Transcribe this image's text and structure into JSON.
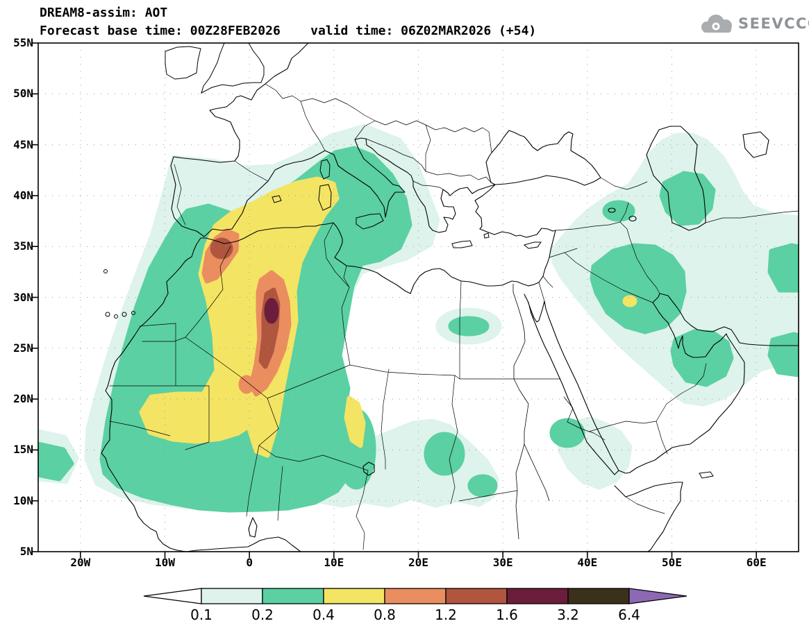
{
  "header": {
    "line1": "DREAM8-assim: AOT",
    "line2": "Forecast base time: 00Z28FEB2026    valid time: 06Z02MAR2026 (+54)"
  },
  "logo": {
    "text": "SEEVCCC"
  },
  "axes": {
    "x_ticks": [
      {
        "label": "20W",
        "lon": -20
      },
      {
        "label": "10W",
        "lon": -10
      },
      {
        "label": "0",
        "lon": 0
      },
      {
        "label": "10E",
        "lon": 10
      },
      {
        "label": "20E",
        "lon": 20
      },
      {
        "label": "30E",
        "lon": 30
      },
      {
        "label": "40E",
        "lon": 40
      },
      {
        "label": "50E",
        "lon": 50
      },
      {
        "label": "60E",
        "lon": 60
      }
    ],
    "y_ticks": [
      {
        "label": "55N",
        "lat": 55
      },
      {
        "label": "50N",
        "lat": 50
      },
      {
        "label": "45N",
        "lat": 45
      },
      {
        "label": "40N",
        "lat": 40
      },
      {
        "label": "35N",
        "lat": 35
      },
      {
        "label": "30N",
        "lat": 30
      },
      {
        "label": "25N",
        "lat": 25
      },
      {
        "label": "20N",
        "lat": 20
      },
      {
        "label": "15N",
        "lat": 15
      },
      {
        "label": "10N",
        "lat": 10
      },
      {
        "label": "5N",
        "lat": 5
      }
    ]
  },
  "palette": {
    "0_1": "#ddf3ec",
    "0_2": "#5bd0a2",
    "0_4": "#f4e464",
    "0_8": "#ea8e5f",
    "1_2": "#b0553e",
    "1_6": "#6d1d3c",
    "3_2": "#3a301c"
  },
  "colorbar": {
    "below_min_color": "#ffffff",
    "above_max_color": "#8d69b3",
    "box_colors": [
      "#ddf3ec",
      "#5bd0a2",
      "#f4e464",
      "#ea8e5f",
      "#b0553e",
      "#6d1d3c",
      "#3a301c"
    ],
    "labels": [
      "0.1",
      "0.2",
      "0.4",
      "0.8",
      "1.2",
      "1.6",
      "3.2",
      "6.4"
    ]
  },
  "chart_data": {
    "type": "heatmap",
    "title": "DREAM8-assim: AOT",
    "variable": "AOT (aerosol optical thickness), filled contours over geographic map",
    "forecast_base_time": "00Z28FEB2026",
    "valid_time": "06Z02MAR2026 (+54)",
    "lead_hours": 54,
    "lon_range_deg": [
      -25,
      65
    ],
    "lat_range_deg": [
      5,
      55
    ],
    "contour_levels": [
      0.1,
      0.2,
      0.4,
      0.8,
      1.2,
      1.6,
      3.2,
      6.4
    ],
    "level_colors": [
      "#ddf3ec",
      "#5bd0a2",
      "#f4e464",
      "#ea8e5f",
      "#b0553e",
      "#6d1d3c",
      "#3a301c"
    ],
    "below_min_color": "#ffffff",
    "above_max_color": "#8d69b3",
    "features": [
      {
        "region": "central Algeria (~3E, 29N)",
        "aot": "1.6-3.2 (domain maximum core)"
      },
      {
        "region": "N Morocco / Atlas (~5W, 34N)",
        "aot": "1.2-1.6"
      },
      {
        "region": "elongated dust plume Morocco -> N Algeria -> Sardinia, and south to Sahel (~14N)",
        "aot": "0.4-0.8"
      },
      {
        "region": "Mauritania / Mali (~10W, 19N)",
        "aot": "0.4-0.8"
      },
      {
        "region": "W Chad streak (~13E, 17N)",
        "aot": "0.4-0.8"
      },
      {
        "region": "S Iberia, central Mediterranean, Italy, Adriatic",
        "aot": "0.2-0.4"
      },
      {
        "region": "Sahel band 8-15N from Senegal to Sudan",
        "aot": "0.1-0.4"
      },
      {
        "region": "Iraq / W Iran (~46E, 31N)",
        "aot": "0.2-0.4 with small 0.4-0.8 speck (~45E, 29.5N)"
      },
      {
        "region": "Persian Gulf / UAE (~53E, 25N)",
        "aot": "0.2-0.4"
      },
      {
        "region": "S Caspian (~51E, 39N)",
        "aot": "0.2-0.4"
      },
      {
        "region": "S Red Sea / Eritrea / Yemen",
        "aot": "0.1-0.2"
      },
      {
        "region": "E Mediterranean, most of Egypt and NE Libya",
        "aot": "< 0.1"
      }
    ]
  }
}
